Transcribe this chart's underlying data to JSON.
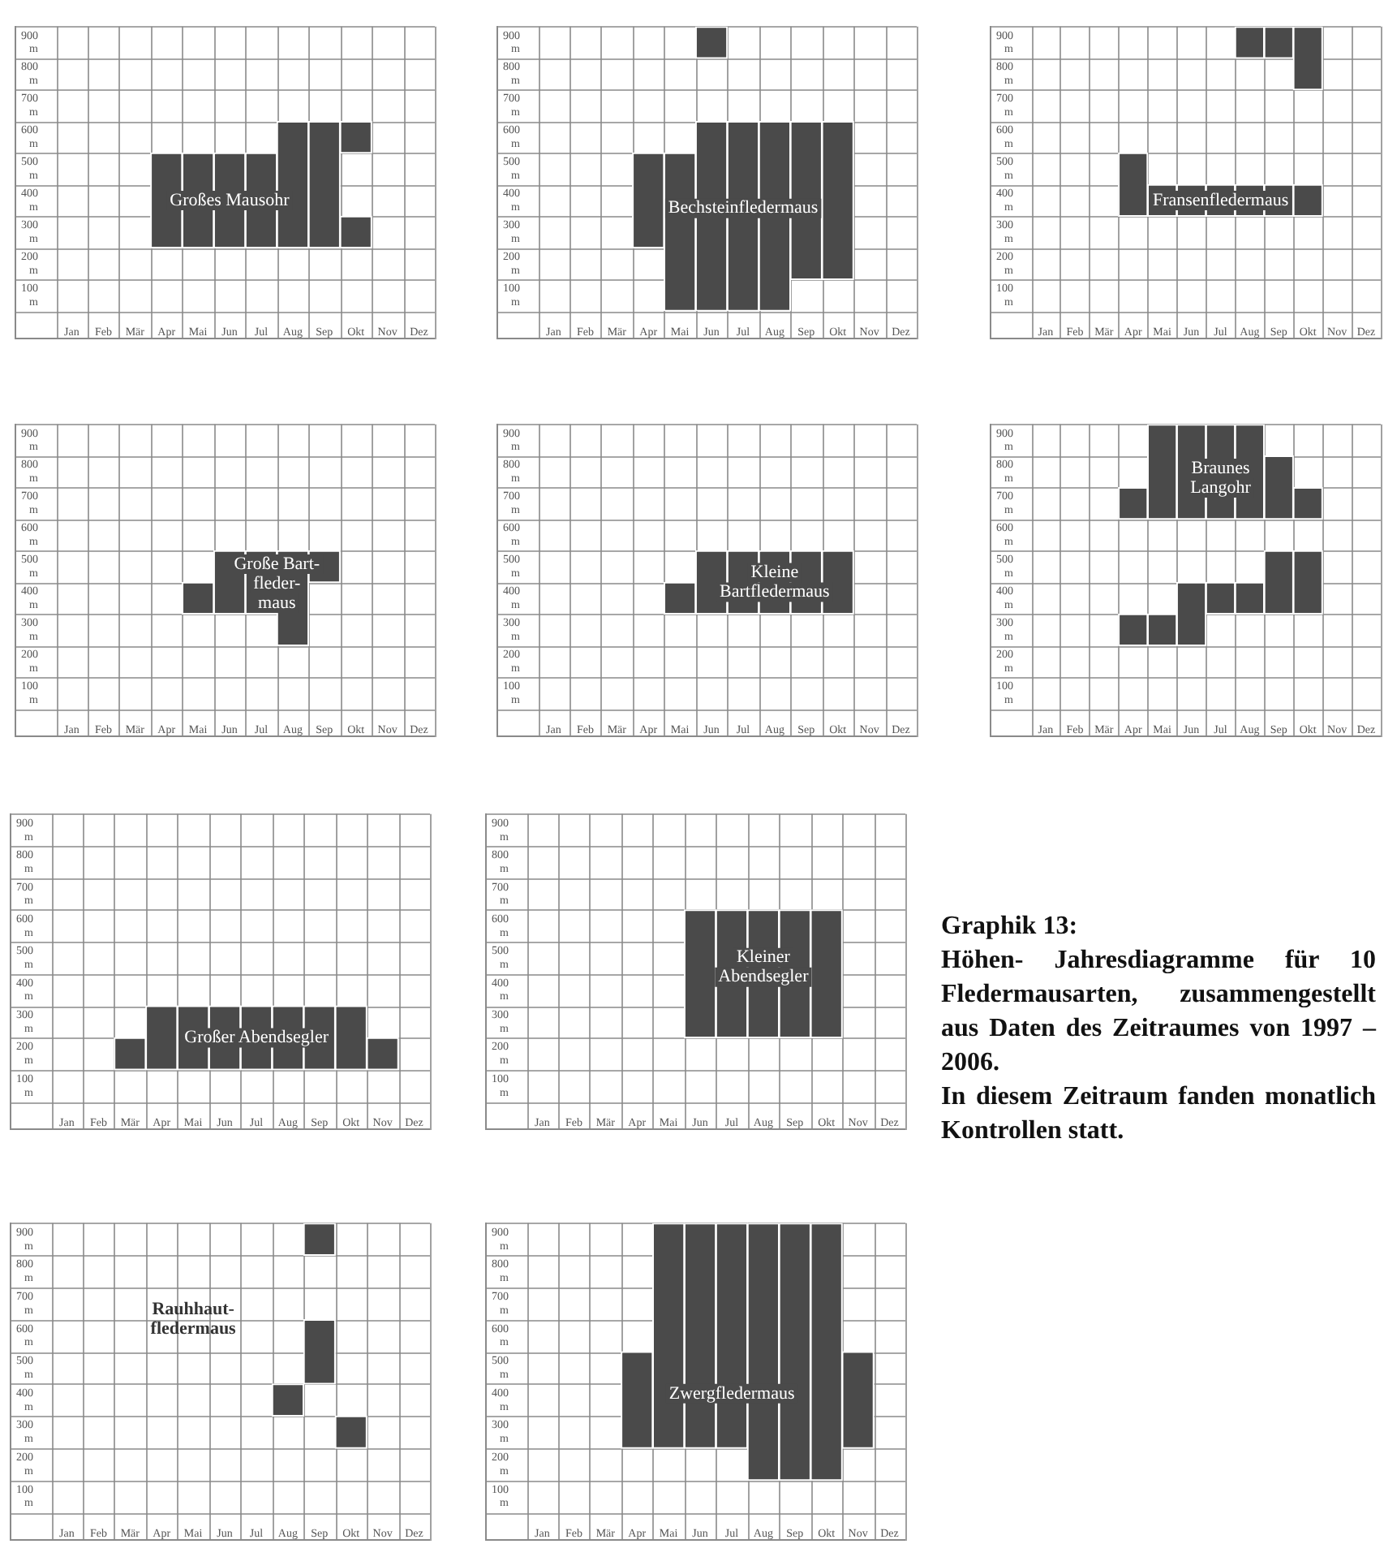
{
  "chart_data": [
    {
      "type": "bar",
      "categories": [
        "Jan",
        "Feb",
        "Mär",
        "Apr",
        "Mai",
        "Jun",
        "Jul",
        "Aug",
        "Sep",
        "Okt",
        "Nov",
        "Dez"
      ],
      "ylim": [
        50,
        950
      ],
      "yticks": [
        {
          "value": 100,
          "label": "100 m"
        },
        {
          "value": 200,
          "label": "200 m"
        },
        {
          "value": 300,
          "label": "300 m"
        },
        {
          "value": 400,
          "label": "400 m"
        },
        {
          "value": 500,
          "label": "500 m"
        },
        {
          "value": 600,
          "label": "600 m"
        },
        {
          "value": 700,
          "label": "700 m"
        },
        {
          "value": 800,
          "label": "800 m"
        },
        {
          "value": 900,
          "label": "900 m"
        }
      ],
      "grid": true,
      "annotations": [
        "Großes Mausohr"
      ],
      "series": [
        {
          "color": "#4a4a4a",
          "values": [
            null,
            null,
            null,
            300,
            300,
            300,
            300,
            400,
            400,
            100,
            null,
            null
          ],
          "base": [
            null,
            null,
            null,
            250,
            250,
            250,
            250,
            250,
            250,
            250,
            null,
            null
          ]
        },
        {
          "color": "#4a4a4a",
          "values": [
            null,
            null,
            null,
            null,
            null,
            null,
            null,
            null,
            null,
            100,
            null,
            null
          ],
          "base": [
            null,
            null,
            null,
            null,
            null,
            null,
            null,
            null,
            null,
            550,
            null,
            null
          ]
        }
      ]
    },
    {
      "type": "bar",
      "categories": [
        "Jan",
        "Feb",
        "Mär",
        "Apr",
        "Mai",
        "Jun",
        "Jul",
        "Aug",
        "Sep",
        "Okt",
        "Nov",
        "Dez"
      ],
      "ylim": [
        50,
        950
      ],
      "yticks": [
        {
          "value": 100,
          "label": "100 m"
        },
        {
          "value": 200,
          "label": "200 m"
        },
        {
          "value": 300,
          "label": "300 m"
        },
        {
          "value": 400,
          "label": "400 m"
        },
        {
          "value": 500,
          "label": "500 m"
        },
        {
          "value": 600,
          "label": "600 m"
        },
        {
          "value": 700,
          "label": "700 m"
        },
        {
          "value": 800,
          "label": "800 m"
        },
        {
          "value": 900,
          "label": "900 m"
        }
      ],
      "grid": true,
      "annotations": [
        "Bechsteinfledermaus"
      ],
      "series": [
        {
          "color": "#4a4a4a",
          "values": [
            null,
            null,
            null,
            300,
            500,
            600,
            600,
            600,
            500,
            500,
            null,
            null
          ],
          "base": [
            null,
            null,
            null,
            250,
            50,
            50,
            50,
            50,
            150,
            150,
            null,
            null
          ]
        },
        {
          "color": "#4a4a4a",
          "values": [
            null,
            null,
            null,
            null,
            null,
            100,
            null,
            null,
            null,
            null,
            null,
            null
          ],
          "base": [
            null,
            null,
            null,
            null,
            null,
            850,
            null,
            null,
            null,
            null,
            null,
            null
          ]
        }
      ]
    },
    {
      "type": "bar",
      "categories": [
        "Jan",
        "Feb",
        "Mär",
        "Apr",
        "Mai",
        "Jun",
        "Jul",
        "Aug",
        "Sep",
        "Okt",
        "Nov",
        "Dez"
      ],
      "ylim": [
        50,
        950
      ],
      "yticks": [
        {
          "value": 100,
          "label": "100 m"
        },
        {
          "value": 200,
          "label": "200 m"
        },
        {
          "value": 300,
          "label": "300 m"
        },
        {
          "value": 400,
          "label": "400 m"
        },
        {
          "value": 500,
          "label": "500 m"
        },
        {
          "value": 600,
          "label": "600 m"
        },
        {
          "value": 700,
          "label": "700 m"
        },
        {
          "value": 800,
          "label": "800 m"
        },
        {
          "value": 900,
          "label": "900 m"
        }
      ],
      "grid": true,
      "annotations": [
        "Fransenfledermaus"
      ],
      "series": [
        {
          "color": "#4a4a4a",
          "values": [
            null,
            null,
            null,
            200,
            100,
            100,
            100,
            100,
            100,
            100,
            null,
            null
          ],
          "base": [
            null,
            null,
            null,
            350,
            350,
            350,
            350,
            350,
            350,
            350,
            null,
            null
          ]
        },
        {
          "color": "#4a4a4a",
          "values": [
            null,
            null,
            null,
            null,
            null,
            null,
            null,
            100,
            100,
            200,
            null,
            null
          ],
          "base": [
            null,
            null,
            null,
            null,
            null,
            null,
            null,
            850,
            850,
            750,
            null,
            null
          ]
        }
      ]
    },
    {
      "type": "bar",
      "categories": [
        "Jan",
        "Feb",
        "Mär",
        "Apr",
        "Mai",
        "Jun",
        "Jul",
        "Aug",
        "Sep",
        "Okt",
        "Nov",
        "Dez"
      ],
      "ylim": [
        50,
        950
      ],
      "yticks": [
        {
          "value": 100,
          "label": "100 m"
        },
        {
          "value": 200,
          "label": "200 m"
        },
        {
          "value": 300,
          "label": "300 m"
        },
        {
          "value": 400,
          "label": "400 m"
        },
        {
          "value": 500,
          "label": "500 m"
        },
        {
          "value": 600,
          "label": "600 m"
        },
        {
          "value": 700,
          "label": "700 m"
        },
        {
          "value": 800,
          "label": "800 m"
        },
        {
          "value": 900,
          "label": "900 m"
        }
      ],
      "grid": true,
      "annotations": [
        "Große Bart-\nfleder-\nmaus"
      ],
      "series": [
        {
          "color": "#4a4a4a",
          "values": [
            null,
            null,
            null,
            null,
            100,
            200,
            200,
            300,
            100,
            null,
            null,
            null
          ],
          "base": [
            null,
            null,
            null,
            null,
            350,
            350,
            350,
            250,
            450,
            null,
            null,
            null
          ]
        }
      ]
    },
    {
      "type": "bar",
      "categories": [
        "Jan",
        "Feb",
        "Mär",
        "Apr",
        "Mai",
        "Jun",
        "Jul",
        "Aug",
        "Sep",
        "Okt",
        "Nov",
        "Dez"
      ],
      "ylim": [
        50,
        950
      ],
      "yticks": [
        {
          "value": 100,
          "label": "100 m"
        },
        {
          "value": 200,
          "label": "200 m"
        },
        {
          "value": 300,
          "label": "300 m"
        },
        {
          "value": 400,
          "label": "400 m"
        },
        {
          "value": 500,
          "label": "500 m"
        },
        {
          "value": 600,
          "label": "600 m"
        },
        {
          "value": 700,
          "label": "700 m"
        },
        {
          "value": 800,
          "label": "800 m"
        },
        {
          "value": 900,
          "label": "900 m"
        }
      ],
      "grid": true,
      "annotations": [
        "Kleine\nBartfledermaus"
      ],
      "series": [
        {
          "color": "#4a4a4a",
          "values": [
            null,
            null,
            null,
            null,
            100,
            200,
            200,
            200,
            200,
            200,
            null,
            null
          ],
          "base": [
            null,
            null,
            null,
            null,
            350,
            350,
            350,
            350,
            350,
            350,
            null,
            null
          ]
        }
      ]
    },
    {
      "type": "bar",
      "categories": [
        "Jan",
        "Feb",
        "Mär",
        "Apr",
        "Mai",
        "Jun",
        "Jul",
        "Aug",
        "Sep",
        "Okt",
        "Nov",
        "Dez"
      ],
      "ylim": [
        50,
        950
      ],
      "yticks": [
        {
          "value": 100,
          "label": "100 m"
        },
        {
          "value": 200,
          "label": "200 m"
        },
        {
          "value": 300,
          "label": "300 m"
        },
        {
          "value": 400,
          "label": "400 m"
        },
        {
          "value": 500,
          "label": "500 m"
        },
        {
          "value": 600,
          "label": "600 m"
        },
        {
          "value": 700,
          "label": "700 m"
        },
        {
          "value": 800,
          "label": "800 m"
        },
        {
          "value": 900,
          "label": "900 m"
        }
      ],
      "grid": true,
      "annotations": [
        "Braunes\nLangohr"
      ],
      "series": [
        {
          "color": "#4a4a4a",
          "values": [
            null,
            null,
            null,
            100,
            100,
            200,
            100,
            100,
            200,
            200,
            null,
            null
          ],
          "base": [
            null,
            null,
            null,
            250,
            250,
            250,
            350,
            350,
            350,
            350,
            null,
            null
          ]
        },
        {
          "color": "#4a4a4a",
          "values": [
            null,
            null,
            null,
            100,
            300,
            300,
            300,
            300,
            200,
            100,
            null,
            null
          ],
          "base": [
            null,
            null,
            null,
            650,
            650,
            650,
            650,
            650,
            650,
            650,
            null,
            null
          ]
        }
      ]
    },
    {
      "type": "bar",
      "categories": [
        "Jan",
        "Feb",
        "Mär",
        "Apr",
        "Mai",
        "Jun",
        "Jul",
        "Aug",
        "Sep",
        "Okt",
        "Nov",
        "Dez"
      ],
      "ylim": [
        50,
        950
      ],
      "yticks": [
        {
          "value": 100,
          "label": "100 m"
        },
        {
          "value": 200,
          "label": "200 m"
        },
        {
          "value": 300,
          "label": "300 m"
        },
        {
          "value": 400,
          "label": "400 m"
        },
        {
          "value": 500,
          "label": "500 m"
        },
        {
          "value": 600,
          "label": "600 m"
        },
        {
          "value": 700,
          "label": "700 m"
        },
        {
          "value": 800,
          "label": "800 m"
        },
        {
          "value": 900,
          "label": "900 m"
        }
      ],
      "grid": true,
      "annotations": [
        "Großer Abendsegler"
      ],
      "series": [
        {
          "color": "#4a4a4a",
          "values": [
            null,
            null,
            100,
            200,
            200,
            200,
            200,
            200,
            200,
            200,
            100,
            null
          ],
          "base": [
            null,
            null,
            150,
            150,
            150,
            150,
            150,
            150,
            150,
            150,
            150,
            null
          ]
        }
      ]
    },
    {
      "type": "bar",
      "categories": [
        "Jan",
        "Feb",
        "Mär",
        "Apr",
        "Mai",
        "Jun",
        "Jul",
        "Aug",
        "Sep",
        "Okt",
        "Nov",
        "Dez"
      ],
      "ylim": [
        50,
        950
      ],
      "yticks": [
        {
          "value": 100,
          "label": "100 m"
        },
        {
          "value": 200,
          "label": "200 m"
        },
        {
          "value": 300,
          "label": "300 m"
        },
        {
          "value": 400,
          "label": "400 m"
        },
        {
          "value": 500,
          "label": "500 m"
        },
        {
          "value": 600,
          "label": "600 m"
        },
        {
          "value": 700,
          "label": "700 m"
        },
        {
          "value": 800,
          "label": "800 m"
        },
        {
          "value": 900,
          "label": "900 m"
        }
      ],
      "grid": true,
      "annotations": [
        "Kleiner\nAbendsegler"
      ],
      "series": [
        {
          "color": "#4a4a4a",
          "values": [
            null,
            null,
            null,
            null,
            null,
            400,
            400,
            400,
            400,
            400,
            null,
            null
          ],
          "base": [
            null,
            null,
            null,
            null,
            null,
            250,
            250,
            250,
            250,
            250,
            null,
            null
          ]
        }
      ]
    },
    {
      "type": "bar",
      "categories": [
        "Jan",
        "Feb",
        "Mär",
        "Apr",
        "Mai",
        "Jun",
        "Jul",
        "Aug",
        "Sep",
        "Okt",
        "Nov",
        "Dez"
      ],
      "ylim": [
        50,
        950
      ],
      "yticks": [
        {
          "value": 100,
          "label": "100 m"
        },
        {
          "value": 200,
          "label": "200 m"
        },
        {
          "value": 300,
          "label": "300 m"
        },
        {
          "value": 400,
          "label": "400 m"
        },
        {
          "value": 500,
          "label": "500 m"
        },
        {
          "value": 600,
          "label": "600 m"
        },
        {
          "value": 700,
          "label": "700 m"
        },
        {
          "value": 800,
          "label": "800 m"
        },
        {
          "value": 900,
          "label": "900 m"
        }
      ],
      "grid": true,
      "annotations": [
        "Rauhhaut-\nfledermaus"
      ],
      "series": [
        {
          "color": "#4a4a4a",
          "values": [
            null,
            null,
            null,
            null,
            null,
            null,
            null,
            100,
            200,
            100,
            null,
            null
          ],
          "base": [
            null,
            null,
            null,
            null,
            null,
            null,
            null,
            350,
            450,
            250,
            null,
            null
          ]
        },
        {
          "color": "#4a4a4a",
          "values": [
            null,
            null,
            null,
            null,
            null,
            null,
            null,
            null,
            100,
            null,
            null,
            null
          ],
          "base": [
            null,
            null,
            null,
            null,
            null,
            null,
            null,
            null,
            850,
            null,
            null,
            null
          ]
        }
      ]
    },
    {
      "type": "bar",
      "categories": [
        "Jan",
        "Feb",
        "Mär",
        "Apr",
        "Mai",
        "Jun",
        "Jul",
        "Aug",
        "Sep",
        "Okt",
        "Nov",
        "Dez"
      ],
      "ylim": [
        50,
        950
      ],
      "yticks": [
        {
          "value": 100,
          "label": "100 m"
        },
        {
          "value": 200,
          "label": "200 m"
        },
        {
          "value": 300,
          "label": "300 m"
        },
        {
          "value": 400,
          "label": "400 m"
        },
        {
          "value": 500,
          "label": "500 m"
        },
        {
          "value": 600,
          "label": "600 m"
        },
        {
          "value": 700,
          "label": "700 m"
        },
        {
          "value": 800,
          "label": "800 m"
        },
        {
          "value": 900,
          "label": "900 m"
        }
      ],
      "grid": true,
      "annotations": [
        "Zwergfledermaus"
      ],
      "series": [
        {
          "color": "#4a4a4a",
          "values": [
            null,
            null,
            null,
            300,
            700,
            700,
            700,
            800,
            800,
            800,
            300,
            null
          ],
          "base": [
            null,
            null,
            null,
            250,
            250,
            250,
            250,
            150,
            150,
            150,
            250,
            null
          ]
        }
      ]
    },
    {
      "type": "other",
      "title": "Graphik 13:",
      "subtitle": "Höhen- Jahresdiagramme für 10 Fledermausarten, zusammengestellt aus Daten des Zeitraumes von 1997 – 2006.",
      "annotations": [
        "In diesem Zeitraum fanden monatlich Kontrollen statt."
      ]
    }
  ]
}
